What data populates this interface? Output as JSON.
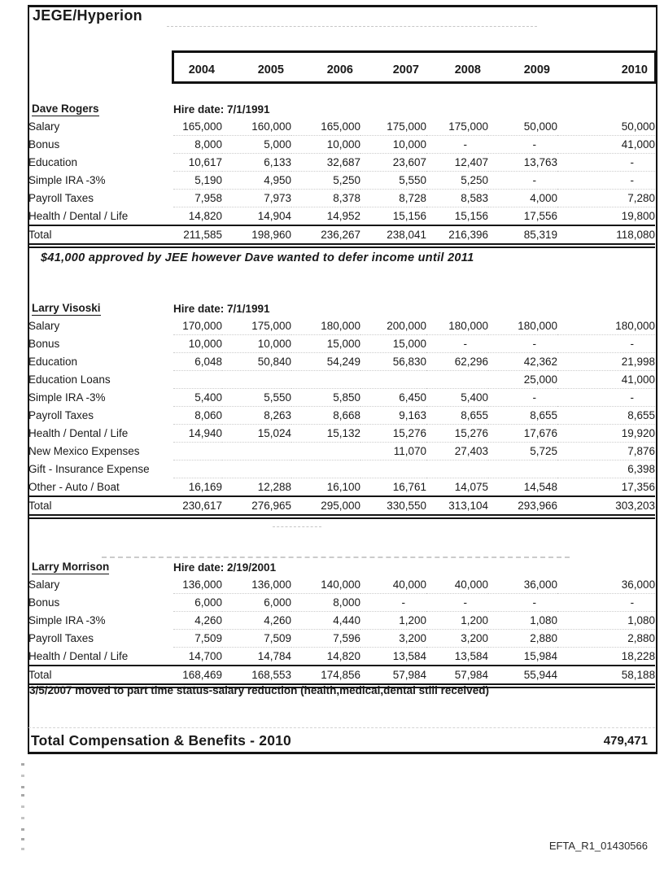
{
  "document": {
    "title": "JEGE/Hyperion",
    "ink_color": "#1a1a1a",
    "years": [
      "2004",
      "2005",
      "2006",
      "2007",
      "2008",
      "2009",
      "2010"
    ],
    "sections": [
      {
        "name": "Dave Rogers",
        "hire_date_label": "Hire date: 7/1/1991",
        "rows": [
          {
            "label": "Salary",
            "values": [
              "165,000",
              "160,000",
              "165,000",
              "175,000",
              "175,000",
              "50,000",
              "50,000"
            ]
          },
          {
            "label": "Bonus",
            "values": [
              "8,000",
              "5,000",
              "10,000",
              "10,000",
              "-",
              "-",
              "41,000"
            ]
          },
          {
            "label": "Education",
            "values": [
              "10,617",
              "6,133",
              "32,687",
              "23,607",
              "12,407",
              "13,763",
              "-"
            ]
          },
          {
            "label": "Simple IRA -3%",
            "values": [
              "5,190",
              "4,950",
              "5,250",
              "5,550",
              "5,250",
              "-",
              "-"
            ]
          },
          {
            "label": "Payroll Taxes",
            "values": [
              "7,958",
              "7,973",
              "8,378",
              "8,728",
              "8,583",
              "4,000",
              "7,280"
            ]
          },
          {
            "label": "Health / Dental / Life",
            "values": [
              "14,820",
              "14,904",
              "14,952",
              "15,156",
              "15,156",
              "17,556",
              "19,800"
            ]
          }
        ],
        "total_row": {
          "label": "Total",
          "values": [
            "211,585",
            "198,960",
            "236,267",
            "238,041",
            "216,396",
            "85,319",
            "118,080"
          ]
        },
        "note": "$41,000 approved by JEE however Dave wanted to defer income until 2011"
      },
      {
        "name": "Larry Visoski",
        "hire_date_label": "Hire date: 7/1/1991",
        "rows": [
          {
            "label": "Salary",
            "values": [
              "170,000",
              "175,000",
              "180,000",
              "200,000",
              "180,000",
              "180,000",
              "180,000"
            ]
          },
          {
            "label": "Bonus",
            "values": [
              "10,000",
              "10,000",
              "15,000",
              "15,000",
              "-",
              "-",
              "-"
            ]
          },
          {
            "label": "Education",
            "values": [
              "6,048",
              "50,840",
              "54,249",
              "56,830",
              "62,296",
              "42,362",
              "21,998"
            ]
          },
          {
            "label": "Education Loans",
            "values": [
              "",
              "",
              "",
              "",
              "",
              "25,000",
              "41,000"
            ]
          },
          {
            "label": "Simple IRA -3%",
            "values": [
              "5,400",
              "5,550",
              "5,850",
              "6,450",
              "5,400",
              "-",
              "-"
            ]
          },
          {
            "label": "Payroll Taxes",
            "values": [
              "8,060",
              "8,263",
              "8,668",
              "9,163",
              "8,655",
              "8,655",
              "8,655"
            ]
          },
          {
            "label": "Health / Dental / Life",
            "values": [
              "14,940",
              "15,024",
              "15,132",
              "15,276",
              "15,276",
              "17,676",
              "19,920"
            ]
          },
          {
            "label": "New Mexico Expenses",
            "values": [
              "",
              "",
              "",
              "11,070",
              "27,403",
              "5,725",
              "7,876"
            ]
          },
          {
            "label": "Gift - Insurance Expense",
            "values": [
              "",
              "",
              "",
              "",
              "",
              "",
              "6,398"
            ]
          },
          {
            "label": "Other - Auto / Boat",
            "values": [
              "16,169",
              "12,288",
              "16,100",
              "16,761",
              "14,075",
              "14,548",
              "17,356"
            ]
          }
        ],
        "total_row": {
          "label": "Total",
          "values": [
            "230,617",
            "276,965",
            "295,000",
            "330,550",
            "313,104",
            "293,966",
            "303,203"
          ]
        },
        "note": ""
      },
      {
        "name": "Larry Morrison",
        "hire_date_label": "Hire date: 2/19/2001",
        "rows": [
          {
            "label": "Salary",
            "values": [
              "136,000",
              "136,000",
              "140,000",
              "40,000",
              "40,000",
              "36,000",
              "36,000"
            ]
          },
          {
            "label": "Bonus",
            "values": [
              "6,000",
              "6,000",
              "8,000",
              "-",
              "-",
              "-",
              "-"
            ]
          },
          {
            "label": "Simple IRA -3%",
            "values": [
              "4,260",
              "4,260",
              "4,440",
              "1,200",
              "1,200",
              "1,080",
              "1,080"
            ]
          },
          {
            "label": "Payroll Taxes",
            "values": [
              "7,509",
              "7,509",
              "7,596",
              "3,200",
              "3,200",
              "2,880",
              "2,880"
            ]
          },
          {
            "label": "Health / Dental / Life",
            "values": [
              "14,700",
              "14,784",
              "14,820",
              "13,584",
              "13,584",
              "15,984",
              "18,228"
            ]
          }
        ],
        "total_row": {
          "label": "Total",
          "values": [
            "168,469",
            "168,553",
            "174,856",
            "57,984",
            "57,984",
            "55,944",
            "58,188"
          ]
        },
        "note": "3/5/2007 moved to part time status-salary reduction (health,medical,dental still received)"
      }
    ],
    "grand_total": {
      "label": "Total Compensation & Benefits - 2010",
      "value": "479,471"
    },
    "footer": {
      "bates_number": "EFTA_R1_01430566"
    }
  }
}
